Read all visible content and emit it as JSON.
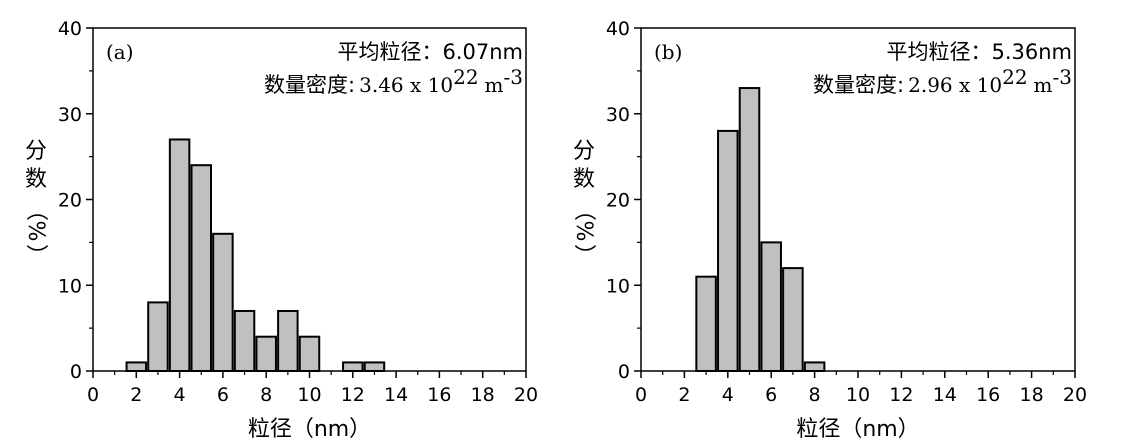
{
  "chart_data": [
    {
      "type": "bar",
      "panel_label": "(a)",
      "annotation_line1": "平均粒径：6.07nm",
      "annotation_line2_prefix": "数量密度:",
      "annotation_line2_value": "3.46 x 10",
      "annotation_line2_exp": "22",
      "annotation_line2_unit": "m",
      "annotation_line2_unit_exp": "-3",
      "xlabel": "粒径（nm）",
      "ylabel_chars": [
        "分",
        "数",
        "（",
        "%",
        "）"
      ],
      "xlim": [
        0,
        20
      ],
      "ylim": [
        0,
        40
      ],
      "xticks": [
        "0",
        "2",
        "4",
        "6",
        "8",
        "10",
        "12",
        "14",
        "16",
        "18",
        "20"
      ],
      "yticks": [
        "0",
        "10",
        "20",
        "30",
        "40"
      ],
      "bar_width": 0.9,
      "x": [
        2,
        3,
        4,
        5,
        6,
        7,
        8,
        9,
        10,
        12,
        13
      ],
      "values": [
        1,
        8,
        27,
        24,
        16,
        7,
        4,
        7,
        4,
        1,
        1
      ],
      "bar_color": "#c0c0c0",
      "edge_color": "#000000"
    },
    {
      "type": "bar",
      "panel_label": "(b)",
      "annotation_line1": "平均粒径：5.36nm",
      "annotation_line2_prefix": "数量密度:",
      "annotation_line2_value": "2.96 x 10",
      "annotation_line2_exp": "22",
      "annotation_line2_unit": "m",
      "annotation_line2_unit_exp": "-3",
      "xlabel": "粒径（nm）",
      "ylabel_chars": [
        "分",
        "数",
        "（",
        "%",
        "）"
      ],
      "xlim": [
        0,
        20
      ],
      "ylim": [
        0,
        40
      ],
      "xticks": [
        "0",
        "2",
        "4",
        "6",
        "8",
        "10",
        "12",
        "14",
        "16",
        "18",
        "20"
      ],
      "yticks": [
        "0",
        "10",
        "20",
        "30",
        "40"
      ],
      "bar_width": 0.9,
      "x": [
        3,
        4,
        5,
        6,
        7,
        8
      ],
      "values": [
        11,
        28,
        33,
        15,
        12,
        1
      ],
      "bar_color": "#c0c0c0",
      "edge_color": "#000000"
    }
  ]
}
